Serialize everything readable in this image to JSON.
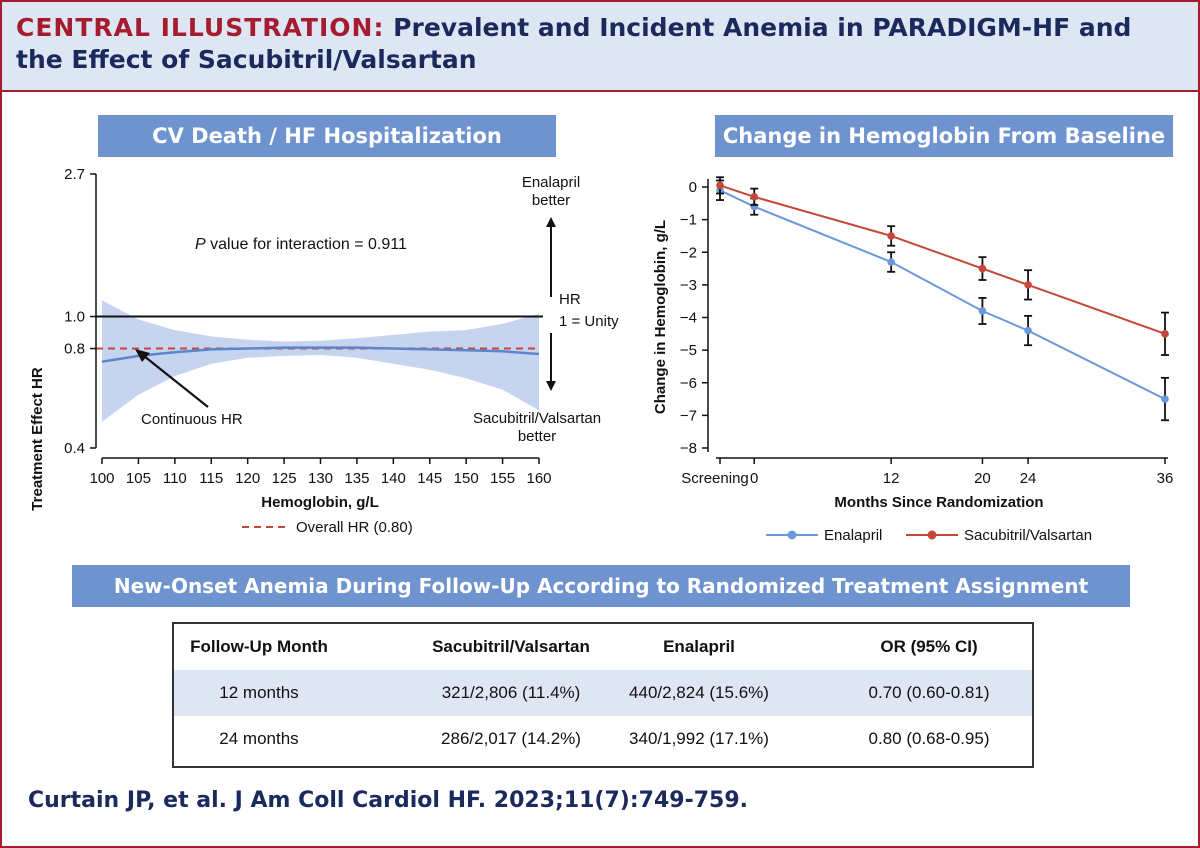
{
  "header": {
    "title_lead": "CENTRAL ILLUSTRATION:",
    "title_rest": "Prevalent and Incident Anemia in PARADIGM-HF and the Effect of Sacubitril/Valsartan"
  },
  "colors": {
    "accent_red": "#a51c30",
    "navy": "#1a2a5c",
    "banner_blue": "#6f93cf",
    "light_blue": "#dfe6f3",
    "enalapril": "#6a98d8",
    "sacubitril_valsartan": "#c5473a"
  },
  "left_panel": {
    "title": "CV Death / HF Hospitalization",
    "y_label": "Treatment Effect HR",
    "x_label": "Hemoglobin, g/L",
    "p_value_italic": "P",
    "p_value_text": "value for interaction = 0.911",
    "enalapril_better_1": "Enalapril",
    "enalapril_better_2": "better",
    "hr_unity_1": "HR",
    "hr_unity_2": "1 = Unity",
    "sv_better_1": "Sacubitril/Valsartan",
    "sv_better_2": "better",
    "continuous_label": "Continuous HR",
    "overall_legend": "Overall HR (0.80)"
  },
  "right_panel": {
    "title": "Change in Hemoglobin From Baseline",
    "legend": [
      "Enalapril",
      "Sacubitril/Valsartan"
    ]
  },
  "table": {
    "title": "New-Onset Anemia During Follow-Up According to Randomized Treatment Assignment",
    "headers": [
      "Follow-Up Month",
      "Sacubitril/Valsartan",
      "Enalapril",
      "OR (95% CI)"
    ],
    "rows": [
      [
        "12 months",
        "321/2,806 (11.4%)",
        "440/2,824 (15.6%)",
        "0.70 (0.60-0.81)"
      ],
      [
        "24 months",
        "286/2,017 (14.2%)",
        "340/1,992 (17.1%)",
        "0.80 (0.68-0.95)"
      ]
    ]
  },
  "citation": "Curtain JP, et al. J Am Coll Cardiol HF. 2023;11(7):749-759.",
  "chart_data": [
    {
      "type": "line",
      "title": "CV Death / HF Hospitalization",
      "xlabel": "Hemoglobin, g/L",
      "ylabel": "Treatment Effect HR",
      "x_ticks": [
        100,
        105,
        110,
        115,
        120,
        125,
        130,
        135,
        140,
        145,
        150,
        155,
        160
      ],
      "y_ticks": [
        0.4,
        0.8,
        1.0,
        2.7
      ],
      "y_scale": "log",
      "xlim": [
        100,
        160
      ],
      "ylim": [
        0.4,
        2.7
      ],
      "reference_line": 1.0,
      "overall_hr": 0.8,
      "x": [
        100,
        105,
        110,
        115,
        120,
        125,
        130,
        135,
        140,
        145,
        150,
        155,
        160
      ],
      "series": [
        {
          "values": [
            0.73,
            0.76,
            0.78,
            0.795,
            0.8,
            0.805,
            0.805,
            0.805,
            0.8,
            0.795,
            0.79,
            0.785,
            0.77
          ]
        },
        {
          "values": [
            1.12,
            0.98,
            0.91,
            0.87,
            0.85,
            0.84,
            0.845,
            0.86,
            0.88,
            0.9,
            0.91,
            0.95,
            1.02
          ]
        },
        {
          "values": [
            0.48,
            0.58,
            0.66,
            0.72,
            0.75,
            0.76,
            0.765,
            0.75,
            0.72,
            0.69,
            0.65,
            0.6,
            0.52
          ]
        }
      ]
    },
    {
      "type": "line",
      "title": "Change in Hemoglobin From Baseline",
      "xlabel": "Months Since Randomization",
      "ylabel": "Change in Hemoglobin, g/L",
      "x_tick_labels": [
        "Screening",
        "0",
        "12",
        "20",
        "24",
        "36"
      ],
      "x": [
        -3,
        0,
        12,
        20,
        24,
        36
      ],
      "ylim": [
        -8,
        0
      ],
      "y_ticks": [
        0,
        -1,
        -2,
        -3,
        -4,
        -5,
        -6,
        -7,
        -8
      ],
      "series": [
        {
          "name": "Enalapril",
          "values": [
            -0.1,
            -0.6,
            -2.3,
            -3.8,
            -4.4,
            -6.5
          ],
          "err": [
            0.3,
            0.25,
            0.3,
            0.4,
            0.45,
            0.65
          ]
        },
        {
          "name": "Sacubitril/Valsartan",
          "values": [
            0.05,
            -0.3,
            -1.5,
            -2.5,
            -3.0,
            -4.5
          ],
          "err": [
            0.25,
            0.25,
            0.3,
            0.35,
            0.45,
            0.65
          ]
        }
      ]
    }
  ]
}
